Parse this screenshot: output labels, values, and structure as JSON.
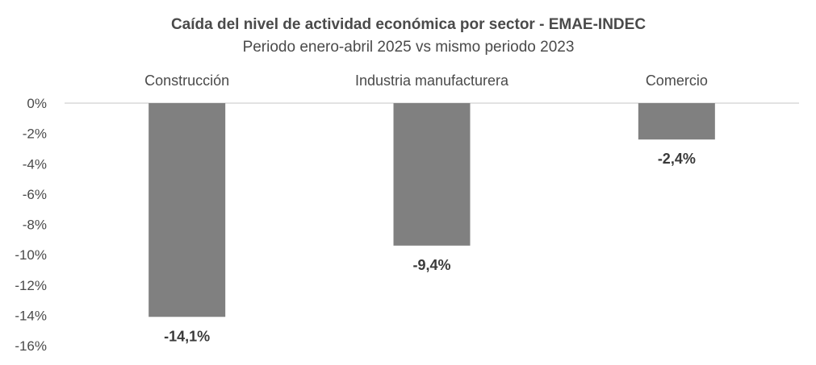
{
  "chart_data": {
    "type": "bar",
    "title": "Caída del nivel de actividad económica por sector - EMAE-INDEC",
    "subtitle": "Periodo enero-abril 2025 vs mismo periodo 2023",
    "categories": [
      "Construcción",
      "Industria manufacturera",
      "Comercio"
    ],
    "values": [
      -14.1,
      -9.4,
      -2.4
    ],
    "data_labels": [
      "-14,1%",
      "-9,4%",
      "-2,4%"
    ],
    "ylim": [
      -16,
      0
    ],
    "yticks": [
      0,
      -2,
      -4,
      -6,
      -8,
      -10,
      -12,
      -14,
      -16
    ],
    "ytick_labels": [
      "0%",
      "-2%",
      "-4%",
      "-6%",
      "-8%",
      "-10%",
      "-12%",
      "-14%",
      "-16%"
    ],
    "xaxis_position": "top",
    "grid": false,
    "legend": "none",
    "bar_color": "#808080",
    "axis_color": "#d9d9d9",
    "text_color": "#4a4a4a"
  }
}
